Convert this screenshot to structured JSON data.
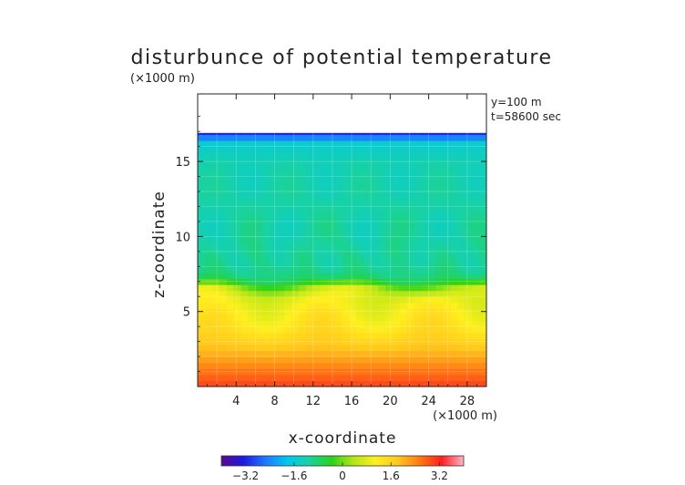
{
  "chart_data": {
    "type": "heatmap",
    "title": "disturbunce of potential temperature",
    "xlabel": "x-coordinate",
    "ylabel": "z-coordinate",
    "x_unit": "(×1000 m)",
    "z_unit": "(×1000 m)",
    "annotations": [
      "y=100 m",
      "t=58600 sec"
    ],
    "xlim": [
      0,
      30
    ],
    "ylim": [
      0,
      19.5
    ],
    "x_ticks": [
      4,
      8,
      12,
      16,
      20,
      24,
      28
    ],
    "x_tick_labels": [
      "4",
      "8",
      "12",
      "16",
      "20",
      "24",
      "28"
    ],
    "y_ticks": [
      5,
      10,
      15
    ],
    "y_tick_labels": [
      "5",
      "10",
      "15"
    ],
    "data_top_z": 16.9,
    "colorbar": {
      "range": [
        -4,
        4
      ],
      "ticks": [
        -3.2,
        -1.6,
        0,
        1.6,
        3.2
      ],
      "tick_labels": [
        "−3.2",
        "−1.6",
        "0",
        "1.6",
        "3.2"
      ],
      "colors": [
        "#5b0a8c",
        "#1a1ae6",
        "#1e78ff",
        "#00c8f0",
        "#19d2a0",
        "#2ad21a",
        "#b4e614",
        "#fff01e",
        "#ffc81e",
        "#ff7a14",
        "#ff1e1e",
        "#ffb4c8"
      ]
    },
    "field_profile": {
      "z": [
        0,
        1,
        2,
        3,
        4,
        5,
        6,
        6.6,
        7.2,
        8,
        10,
        12,
        15,
        16.3,
        16.9
      ],
      "value": [
        3.0,
        2.6,
        2.1,
        1.65,
        1.3,
        1.1,
        0.8,
        0.3,
        -0.8,
        -1.05,
        -1.15,
        -1.15,
        -1.25,
        -1.55,
        -3.3
      ]
    }
  }
}
